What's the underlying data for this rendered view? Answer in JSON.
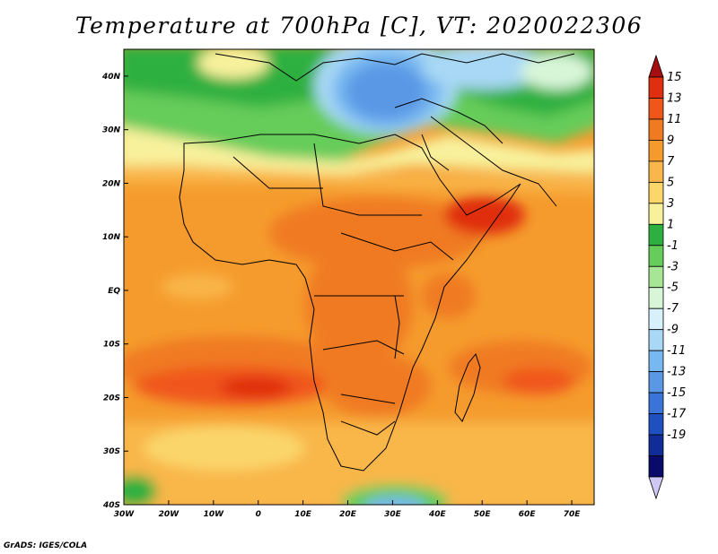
{
  "title": "Temperature at 700hPa [C], VT: 2020022306",
  "credit": "GrADS: IGES/COLA",
  "map": {
    "lon_range": [
      -30,
      75
    ],
    "lat_range": [
      -40,
      45
    ],
    "lon_ticks": [
      {
        "lon": -30,
        "label": "30W"
      },
      {
        "lon": -20,
        "label": "20W"
      },
      {
        "lon": -10,
        "label": "10W"
      },
      {
        "lon": 0,
        "label": "0"
      },
      {
        "lon": 10,
        "label": "10E"
      },
      {
        "lon": 20,
        "label": "20E"
      },
      {
        "lon": 30,
        "label": "30E"
      },
      {
        "lon": 40,
        "label": "40E"
      },
      {
        "lon": 50,
        "label": "50E"
      },
      {
        "lon": 60,
        "label": "60E"
      },
      {
        "lon": 70,
        "label": "70E"
      }
    ],
    "lat_ticks": [
      {
        "lat": 40,
        "label": "40N"
      },
      {
        "lat": 30,
        "label": "30N"
      },
      {
        "lat": 20,
        "label": "20N"
      },
      {
        "lat": 10,
        "label": "10N"
      },
      {
        "lat": 0,
        "label": "EQ"
      },
      {
        "lat": -10,
        "label": "10S"
      },
      {
        "lat": -20,
        "label": "20S"
      },
      {
        "lat": -30,
        "label": "30S"
      },
      {
        "lat": -40,
        "label": "40S"
      }
    ]
  },
  "colorbar": {
    "labels": [
      "15",
      "13",
      "11",
      "9",
      "7",
      "5",
      "3",
      "1",
      "-1",
      "-3",
      "-5",
      "-7",
      "-9",
      "-11",
      "-13",
      "-15",
      "-17",
      "-19"
    ],
    "colors": [
      "#a50f0f",
      "#e02e10",
      "#f0561a",
      "#f07a22",
      "#f59b2d",
      "#f9b64a",
      "#fad66b",
      "#f8f19c",
      "#2eb040",
      "#66cc5a",
      "#a6e696",
      "#d8f5d8",
      "#d8f0fa",
      "#a8d8f5",
      "#78b8f0",
      "#5a98e6",
      "#3a74d8",
      "#1e50c0",
      "#102c96",
      "#0a0a6a",
      "#cfc8f5"
    ]
  }
}
